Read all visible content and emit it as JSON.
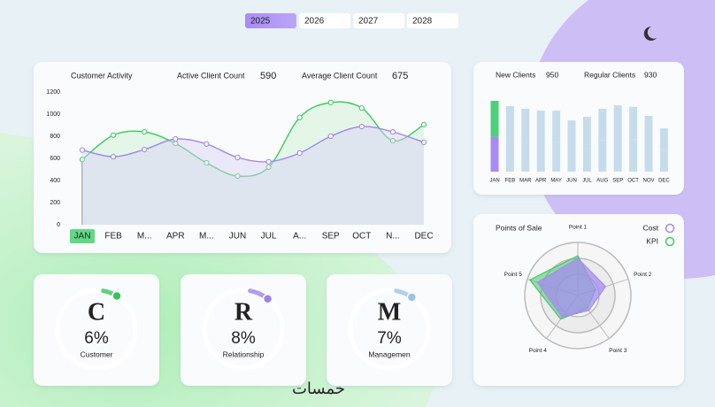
{
  "year_tabs": {
    "items": [
      "2025",
      "2026",
      "2027",
      "2028"
    ],
    "active": 0
  },
  "watermark": "خمسات",
  "chart_data": [
    {
      "type": "line",
      "title": "Customer Activity",
      "categories": [
        "JAN",
        "FEB",
        "M...",
        "APR",
        "M...",
        "JUN",
        "JUL",
        "A...",
        "SEP",
        "OCT",
        "N...",
        "DEC"
      ],
      "series": [
        {
          "name": "Active Client Count",
          "color": "#3ec95f",
          "values": [
            590,
            810,
            840,
            735,
            560,
            440,
            520,
            970,
            1105,
            1055,
            760,
            905
          ]
        },
        {
          "name": "Average Client Count",
          "color": "#9d86ee",
          "values": [
            675,
            615,
            680,
            775,
            730,
            608,
            570,
            648,
            800,
            888,
            840,
            745
          ]
        }
      ],
      "ylim": [
        0,
        1200
      ],
      "yticks": [
        0,
        200,
        400,
        600,
        800,
        1000,
        1200
      ],
      "grid": false,
      "selected_category": 0
    },
    {
      "type": "bar",
      "stacked": true,
      "categories": [
        "JAN",
        "FEB",
        "MAR",
        "APR",
        "MAY",
        "JUN",
        "JUL",
        "AUG",
        "SEP",
        "OCT",
        "NOV",
        "DEC"
      ],
      "series": [
        {
          "name": "New Clients",
          "color": "#4cd07a",
          "values": [
            950,
            880,
            850,
            820,
            830,
            690,
            740,
            840,
            890,
            870,
            750,
            580
          ]
        },
        {
          "name": "Regular Clients",
          "color": "#a88cf5",
          "values": [
            930,
            860,
            820,
            800,
            790,
            670,
            720,
            830,
            870,
            850,
            730,
            570
          ]
        }
      ],
      "other_color": "#c6dcea",
      "selected_category": 0
    },
    {
      "type": "radar",
      "title": "Points of Sale",
      "categories": [
        "Point 1",
        "Point 2",
        "Point 3",
        "Point 4",
        "Point 5"
      ],
      "series": [
        {
          "name": "Cost",
          "color": "#a48cf2",
          "values": [
            70,
            55,
            35,
            50,
            80
          ]
        },
        {
          "name": "KPI",
          "color": "#45c965",
          "values": [
            75,
            35,
            30,
            55,
            95
          ]
        }
      ],
      "rlim": [
        0,
        100
      ],
      "rticks": [
        40,
        70,
        100
      ]
    }
  ],
  "kpi_cards": [
    {
      "letter": "C",
      "value": 6,
      "value_label": "6%",
      "label": "Customer",
      "color": "#38c45c"
    },
    {
      "letter": "R",
      "value": 8,
      "value_label": "8%",
      "label": "Relationship",
      "color": "#9a82ee"
    },
    {
      "letter": "M",
      "value": 7,
      "value_label": "7%",
      "label": "Managemen",
      "color": "#9cc4e4"
    }
  ]
}
